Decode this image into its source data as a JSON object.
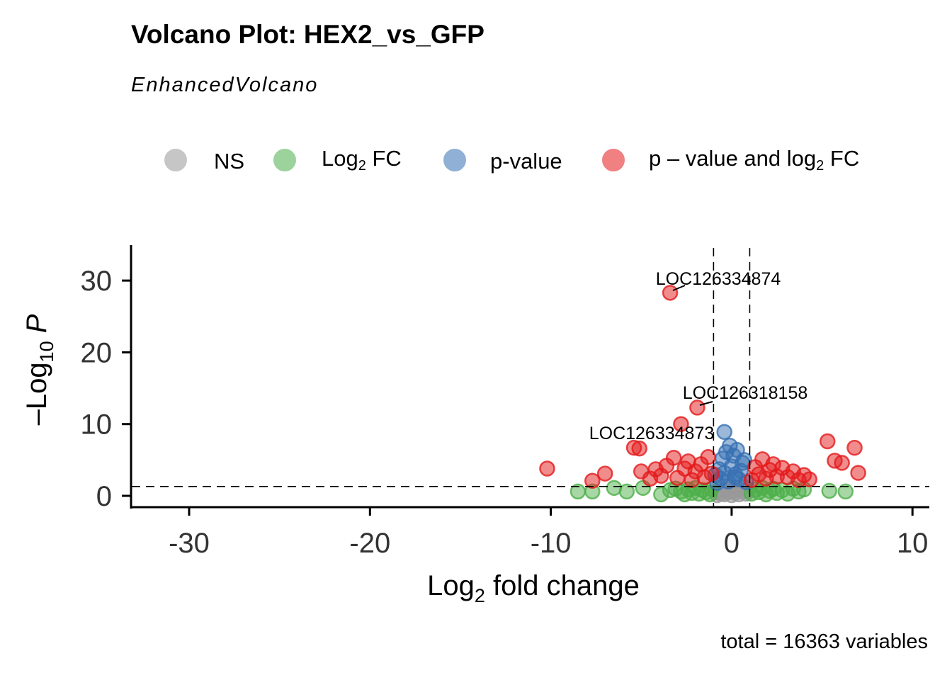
{
  "title": "Volcano Plot: HEX2_vs_GFP",
  "subtitle": "EnhancedVolcano",
  "caption": "total = 16363 variables",
  "legend": {
    "items": [
      {
        "key": "NS",
        "label_main": "NS",
        "label_sub": "",
        "label_after": "",
        "color": "#999999"
      },
      {
        "key": "FC",
        "label_main": "Log",
        "label_sub": "2",
        "label_after": " FC",
        "color": "#4DAF4A"
      },
      {
        "key": "P",
        "label_main": "p-value",
        "label_sub": "",
        "label_after": "",
        "color": "#3771B3"
      },
      {
        "key": "FC_P",
        "label_main": "p – value and log",
        "label_sub": "2",
        "label_after": " FC",
        "color": "#E41A1C"
      }
    ]
  },
  "chart_data": {
    "type": "scatter",
    "title": "Volcano Plot: HEX2_vs_GFP",
    "subtitle": "EnhancedVolcano",
    "xlabel": "Log2 fold change",
    "ylabel": "–Log10 P",
    "xlim": [
      -33.3,
      10.9
    ],
    "ylim": [
      -1.6,
      34.8
    ],
    "x_ticks": [
      -30,
      -20,
      -10,
      0,
      10
    ],
    "y_ticks": [
      0,
      10,
      20,
      30
    ],
    "fc_cutoff": 1,
    "p_cutoff_log10": 1.3,
    "colors": {
      "NS": "#999999",
      "FC": "#4DAF4A",
      "P": "#3771B3",
      "FC_P": "#E41A1C"
    },
    "labels": [
      {
        "text": "LOC126334874",
        "x": -3.4,
        "y": 28.3
      },
      {
        "text": "LOC126318158",
        "x": -1.9,
        "y": 12.3
      },
      {
        "text": "LOC126334873",
        "x": -2.8,
        "y": 10.0
      }
    ],
    "series": [
      {
        "name": "NS",
        "points": [
          [
            -0.8,
            0.1
          ],
          [
            -0.6,
            0.3
          ],
          [
            -0.4,
            0.2
          ],
          [
            -0.2,
            0.5
          ],
          [
            0,
            0.1
          ],
          [
            0.2,
            0.4
          ],
          [
            0.4,
            0.2
          ],
          [
            0.6,
            0.6
          ],
          [
            0.8,
            0.3
          ],
          [
            -0.7,
            0.9
          ],
          [
            -0.3,
            1.0
          ],
          [
            0.1,
            0.8
          ],
          [
            0.3,
            1.1
          ],
          [
            0.5,
            0.9
          ],
          [
            0.7,
            1.2
          ],
          [
            -0.5,
            0.7
          ],
          [
            0,
            0.6
          ],
          [
            -0.1,
            1.2
          ],
          [
            0.9,
            0.7
          ],
          [
            -0.9,
            0.5
          ]
        ]
      },
      {
        "name": "Log2 FC",
        "points": [
          [
            -8.5,
            0.6
          ],
          [
            -7.7,
            0.6
          ],
          [
            -6.5,
            1.1
          ],
          [
            -5.8,
            0.6
          ],
          [
            -4.9,
            1.1
          ],
          [
            -3.9,
            0.2
          ],
          [
            -3.4,
            0.8
          ],
          [
            -3.1,
            1.0
          ],
          [
            -2.8,
            0.6
          ],
          [
            -2.6,
            0.2
          ],
          [
            -2.4,
            0.9
          ],
          [
            -2.2,
            0.4
          ],
          [
            -2.0,
            1.1
          ],
          [
            -1.8,
            0.3
          ],
          [
            -1.6,
            0.8
          ],
          [
            -1.4,
            0.5
          ],
          [
            -1.2,
            0.2
          ],
          [
            -1.1,
            1.0
          ],
          [
            1.1,
            0.3
          ],
          [
            1.3,
            0.9
          ],
          [
            1.5,
            0.5
          ],
          [
            1.7,
            1.1
          ],
          [
            1.9,
            0.2
          ],
          [
            2.1,
            0.7
          ],
          [
            2.3,
            1.0
          ],
          [
            2.5,
            0.4
          ],
          [
            2.8,
            0.8
          ],
          [
            3.1,
            0.3
          ],
          [
            3.4,
            1.0
          ],
          [
            3.7,
            0.6
          ],
          [
            4.0,
            0.9
          ],
          [
            5.4,
            0.7
          ],
          [
            6.3,
            0.6
          ]
        ]
      },
      {
        "name": "p-value",
        "points": [
          [
            -0.8,
            1.8
          ],
          [
            -0.6,
            2.4
          ],
          [
            -0.4,
            3.2
          ],
          [
            -0.2,
            2.0
          ],
          [
            0,
            4.1
          ],
          [
            0.2,
            3.0
          ],
          [
            0.4,
            2.3
          ],
          [
            0.6,
            4.6
          ],
          [
            0.8,
            1.9
          ],
          [
            -0.7,
            3.7
          ],
          [
            -0.5,
            5.2
          ],
          [
            -0.3,
            6.1
          ],
          [
            0.1,
            5.6
          ],
          [
            0.3,
            6.4
          ],
          [
            0.5,
            3.5
          ],
          [
            0.7,
            5.0
          ],
          [
            -0.1,
            7.0
          ],
          [
            -0.4,
            8.9
          ],
          [
            0.2,
            2.6
          ],
          [
            -0.9,
            2.9
          ]
        ]
      },
      {
        "name": "p – value and log2 FC",
        "points": [
          [
            -10.2,
            3.8
          ],
          [
            -7.7,
            2.1
          ],
          [
            -7.0,
            3.1
          ],
          [
            -5.4,
            6.7
          ],
          [
            -5.1,
            6.6
          ],
          [
            -5.0,
            3.4
          ],
          [
            -4.5,
            2.4
          ],
          [
            -4.2,
            3.7
          ],
          [
            -3.9,
            2.8
          ],
          [
            -3.6,
            4.2
          ],
          [
            -3.4,
            28.3
          ],
          [
            -3.2,
            5.3
          ],
          [
            -3.0,
            2.5
          ],
          [
            -2.8,
            10.0
          ],
          [
            -2.6,
            3.8
          ],
          [
            -2.4,
            4.8
          ],
          [
            -2.2,
            2.2
          ],
          [
            -2.0,
            3.4
          ],
          [
            -1.9,
            12.3
          ],
          [
            -1.7,
            4.4
          ],
          [
            -1.5,
            2.6
          ],
          [
            -1.3,
            5.4
          ],
          [
            -1.1,
            3.1
          ],
          [
            1.1,
            2.2
          ],
          [
            1.3,
            4.0
          ],
          [
            1.5,
            3.0
          ],
          [
            1.7,
            5.1
          ],
          [
            1.9,
            2.4
          ],
          [
            2.1,
            3.6
          ],
          [
            2.3,
            4.4
          ],
          [
            2.5,
            2.7
          ],
          [
            2.8,
            3.9
          ],
          [
            3.1,
            2.6
          ],
          [
            3.4,
            3.4
          ],
          [
            3.7,
            2.2
          ],
          [
            4.0,
            2.9
          ],
          [
            4.3,
            2.3
          ],
          [
            5.3,
            7.6
          ],
          [
            5.7,
            4.9
          ],
          [
            6.1,
            4.6
          ],
          [
            6.8,
            6.7
          ],
          [
            7.0,
            3.2
          ]
        ]
      }
    ]
  }
}
